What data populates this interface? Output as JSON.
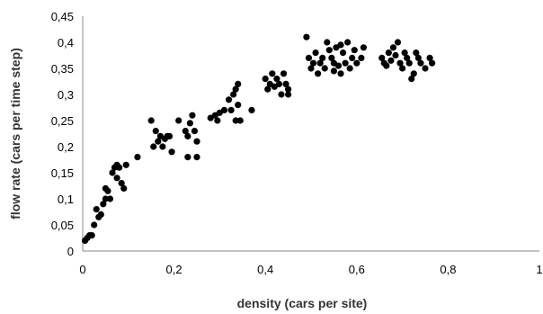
{
  "chart_data": {
    "type": "scatter",
    "title": "",
    "xlabel": "density (cars per site)",
    "ylabel": "flow rate (cars per time step)",
    "xlim": [
      0,
      1
    ],
    "ylim": [
      0,
      0.45
    ],
    "xticks": [
      "0",
      "0,2",
      "0,4",
      "0,6",
      "0,8",
      "1"
    ],
    "yticks": [
      "0",
      "0,05",
      "0,1",
      "0,15",
      "0,2",
      "0,25",
      "0,3",
      "0,35",
      "0,4",
      "0,45"
    ],
    "grid": false,
    "legend": "none",
    "marker_color": "#000000",
    "series": [
      {
        "points": [
          [
            0.005,
            0.02
          ],
          [
            0.01,
            0.025
          ],
          [
            0.015,
            0.03
          ],
          [
            0.02,
            0.03
          ],
          [
            0.025,
            0.05
          ],
          [
            0.03,
            0.08
          ],
          [
            0.035,
            0.065
          ],
          [
            0.04,
            0.07
          ],
          [
            0.045,
            0.09
          ],
          [
            0.05,
            0.1
          ],
          [
            0.05,
            0.12
          ],
          [
            0.055,
            0.115
          ],
          [
            0.06,
            0.1
          ],
          [
            0.065,
            0.15
          ],
          [
            0.07,
            0.16
          ],
          [
            0.075,
            0.165
          ],
          [
            0.075,
            0.14
          ],
          [
            0.08,
            0.16
          ],
          [
            0.085,
            0.13
          ],
          [
            0.09,
            0.12
          ],
          [
            0.095,
            0.165
          ],
          [
            0.12,
            0.18
          ],
          [
            0.15,
            0.25
          ],
          [
            0.155,
            0.2
          ],
          [
            0.16,
            0.23
          ],
          [
            0.165,
            0.21
          ],
          [
            0.17,
            0.22
          ],
          [
            0.175,
            0.2
          ],
          [
            0.18,
            0.215
          ],
          [
            0.185,
            0.22
          ],
          [
            0.19,
            0.22
          ],
          [
            0.195,
            0.19
          ],
          [
            0.21,
            0.25
          ],
          [
            0.225,
            0.23
          ],
          [
            0.23,
            0.22
          ],
          [
            0.23,
            0.18
          ],
          [
            0.235,
            0.245
          ],
          [
            0.24,
            0.26
          ],
          [
            0.245,
            0.23
          ],
          [
            0.25,
            0.21
          ],
          [
            0.25,
            0.18
          ],
          [
            0.28,
            0.255
          ],
          [
            0.29,
            0.26
          ],
          [
            0.295,
            0.25
          ],
          [
            0.3,
            0.265
          ],
          [
            0.31,
            0.27
          ],
          [
            0.32,
            0.29
          ],
          [
            0.325,
            0.27
          ],
          [
            0.33,
            0.3
          ],
          [
            0.335,
            0.25
          ],
          [
            0.335,
            0.31
          ],
          [
            0.34,
            0.32
          ],
          [
            0.345,
            0.25
          ],
          [
            0.34,
            0.28
          ],
          [
            0.37,
            0.27
          ],
          [
            0.4,
            0.33
          ],
          [
            0.405,
            0.31
          ],
          [
            0.41,
            0.32
          ],
          [
            0.415,
            0.34
          ],
          [
            0.42,
            0.315
          ],
          [
            0.425,
            0.33
          ],
          [
            0.43,
            0.32
          ],
          [
            0.435,
            0.3
          ],
          [
            0.44,
            0.34
          ],
          [
            0.445,
            0.32
          ],
          [
            0.45,
            0.31
          ],
          [
            0.45,
            0.3
          ],
          [
            0.49,
            0.41
          ],
          [
            0.495,
            0.37
          ],
          [
            0.5,
            0.35
          ],
          [
            0.505,
            0.36
          ],
          [
            0.51,
            0.38
          ],
          [
            0.515,
            0.34
          ],
          [
            0.52,
            0.36
          ],
          [
            0.525,
            0.37
          ],
          [
            0.53,
            0.35
          ],
          [
            0.535,
            0.4
          ],
          [
            0.54,
            0.385
          ],
          [
            0.545,
            0.37
          ],
          [
            0.55,
            0.36
          ],
          [
            0.555,
            0.39
          ],
          [
            0.56,
            0.355
          ],
          [
            0.565,
            0.34
          ],
          [
            0.57,
            0.38
          ],
          [
            0.575,
            0.36
          ],
          [
            0.58,
            0.4
          ],
          [
            0.585,
            0.35
          ],
          [
            0.59,
            0.37
          ],
          [
            0.595,
            0.385
          ],
          [
            0.6,
            0.36
          ],
          [
            0.55,
            0.345
          ],
          [
            0.565,
            0.395
          ],
          [
            0.61,
            0.37
          ],
          [
            0.615,
            0.39
          ],
          [
            0.655,
            0.37
          ],
          [
            0.66,
            0.36
          ],
          [
            0.665,
            0.355
          ],
          [
            0.67,
            0.38
          ],
          [
            0.675,
            0.365
          ],
          [
            0.68,
            0.39
          ],
          [
            0.685,
            0.375
          ],
          [
            0.69,
            0.4
          ],
          [
            0.695,
            0.36
          ],
          [
            0.7,
            0.35
          ],
          [
            0.705,
            0.38
          ],
          [
            0.71,
            0.37
          ],
          [
            0.715,
            0.36
          ],
          [
            0.72,
            0.33
          ],
          [
            0.725,
            0.34
          ],
          [
            0.73,
            0.38
          ],
          [
            0.735,
            0.37
          ],
          [
            0.74,
            0.36
          ],
          [
            0.75,
            0.35
          ],
          [
            0.76,
            0.37
          ],
          [
            0.765,
            0.36
          ]
        ]
      }
    ]
  }
}
